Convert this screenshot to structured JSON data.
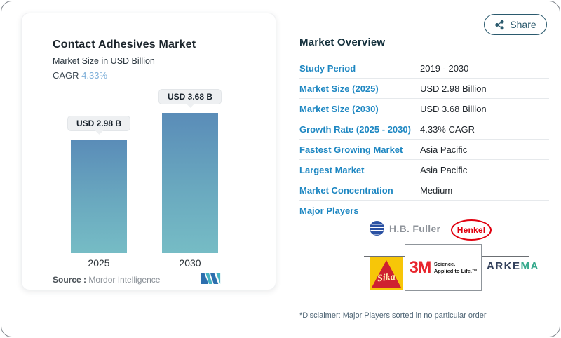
{
  "share": {
    "label": "Share"
  },
  "chart_card": {
    "title": "Contact Adhesives Market",
    "subtitle": "Market Size in USD Billion",
    "cagr_label": "CAGR",
    "cagr_value": "4.33%",
    "source_label": "Source :",
    "source_value": "Mordor Intelligence"
  },
  "chart_data": {
    "type": "bar",
    "categories": [
      "2025",
      "2030"
    ],
    "values": [
      2.98,
      3.68
    ],
    "bar_labels": [
      "USD 2.98 B",
      "USD 3.68 B"
    ],
    "title": "Contact Adhesives Market",
    "subtitle": "Market Size in USD Billion",
    "ylabel": "Market Size in USD Billion",
    "ylim": [
      0,
      3.68
    ],
    "reference_line": 2.98,
    "grid": false,
    "legend": "none",
    "bar_gradient_top": "#5a8cb8",
    "bar_gradient_bottom": "#76bcc5"
  },
  "overview": {
    "title": "Market Overview",
    "rows": [
      {
        "label": "Study Period",
        "value": "2019 - 2030"
      },
      {
        "label": "Market Size (2025)",
        "value": "USD 2.98 Billion"
      },
      {
        "label": "Market Size (2030)",
        "value": "USD 3.68 Billion"
      },
      {
        "label": "Growth Rate (2025 - 2030)",
        "value": "4.33% CAGR"
      },
      {
        "label": "Fastest Growing Market",
        "value": "Asia Pacific"
      },
      {
        "label": "Largest Market",
        "value": "Asia Pacific"
      },
      {
        "label": "Market Concentration",
        "value": "Medium"
      }
    ],
    "major_players_label": "Major Players",
    "players": {
      "hb_fuller": "H.B. Fuller",
      "henkel": "Henkel",
      "sika": "Sika",
      "mmm": "3M",
      "mmm_tag_line1": "Science.",
      "mmm_tag_line2": "Applied to Life.™",
      "arkema_part1": "ARKE",
      "arkema_part2": "MA"
    },
    "disclaimer": "*Disclaimer: Major Players sorted in no particular order"
  },
  "colors": {
    "label_blue": "#1e87c2",
    "cagr_light_blue": "#7fb0d9",
    "heading_dark": "#14303c",
    "share_teal": "#2b5a6e",
    "henkel_red": "#e1000f",
    "mmm_red": "#e8252d",
    "sika_yellow": "#f7c608",
    "sika_red": "#cf2030",
    "hbf_blue": "#2a51a3",
    "arkema_navy": "#33415c",
    "arkema_green": "#35a98c",
    "mi_logo_blue": "#2d6fae",
    "mi_logo_teal": "#45b3c2"
  }
}
